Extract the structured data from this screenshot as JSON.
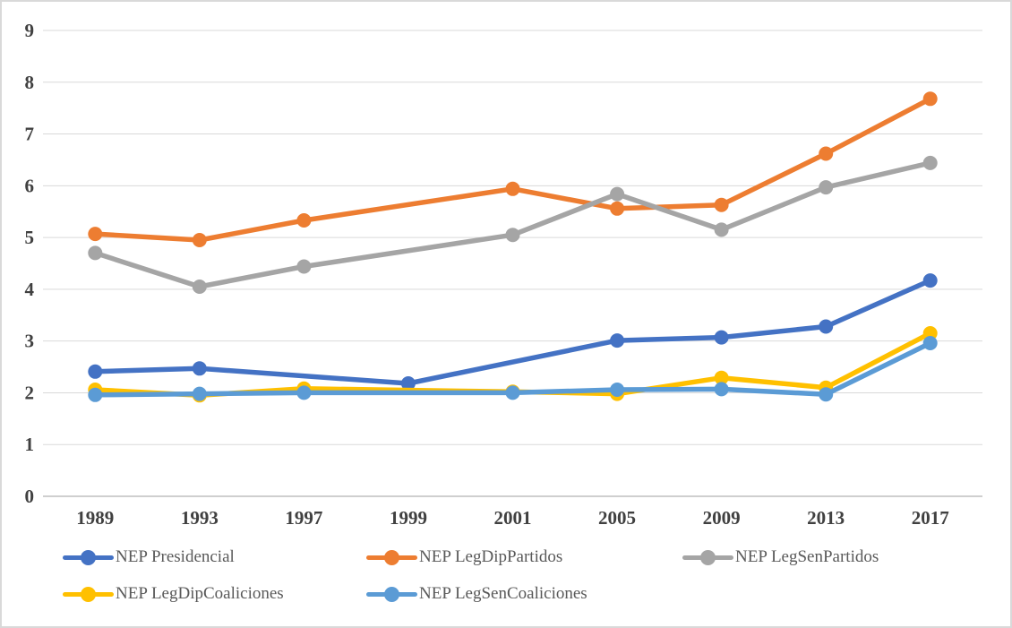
{
  "chart_data": {
    "type": "line",
    "title": "",
    "xlabel": "",
    "ylabel": "",
    "categories": [
      "1989",
      "1993",
      "1997",
      "1999",
      "2001",
      "2005",
      "2009",
      "2013",
      "2017"
    ],
    "series": [
      {
        "name": "NEP Presidencial",
        "color": "#4472C4",
        "values": [
          2.41,
          2.47,
          null,
          2.18,
          null,
          3.01,
          3.07,
          3.28,
          4.17
        ]
      },
      {
        "name": "NEP LegDipPartidos",
        "color": "#ED7D31",
        "values": [
          5.07,
          4.95,
          5.33,
          null,
          5.94,
          5.56,
          5.63,
          6.62,
          7.68
        ]
      },
      {
        "name": "NEP LegSenPartidos",
        "color": "#A5A5A5",
        "values": [
          4.7,
          4.05,
          4.44,
          null,
          5.05,
          5.84,
          5.15,
          5.97,
          6.44
        ]
      },
      {
        "name": "NEP LegDipCoaliciones",
        "color": "#FFC000",
        "values": [
          2.06,
          1.95,
          2.08,
          null,
          2.02,
          1.98,
          2.29,
          2.1,
          3.15
        ]
      },
      {
        "name": "NEP LegSenCoaliciones",
        "color": "#5B9BD5",
        "values": [
          1.96,
          1.98,
          2.0,
          null,
          2.0,
          2.06,
          2.07,
          1.97,
          2.96
        ]
      }
    ],
    "ylim": [
      0,
      9
    ],
    "yticks": [
      0,
      1,
      2,
      3,
      4,
      5,
      6,
      7,
      8,
      9
    ],
    "grid": true,
    "legend_position": "bottom",
    "grid_color": "#D9D9D9",
    "axis_line_color": "#BFBFBF",
    "tick_label_color": "#404040",
    "legend_text_color": "#595959",
    "background_color": "#FFFFFF",
    "border_color": "#D9D9D9"
  }
}
